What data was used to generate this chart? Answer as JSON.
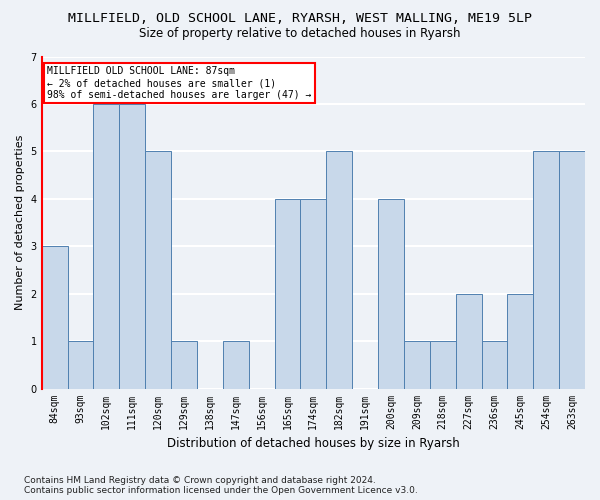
{
  "title": "MILLFIELD, OLD SCHOOL LANE, RYARSH, WEST MALLING, ME19 5LP",
  "subtitle": "Size of property relative to detached houses in Ryarsh",
  "xlabel": "Distribution of detached houses by size in Ryarsh",
  "ylabel": "Number of detached properties",
  "categories": [
    "84sqm",
    "93sqm",
    "102sqm",
    "111sqm",
    "120sqm",
    "129sqm",
    "138sqm",
    "147sqm",
    "156sqm",
    "165sqm",
    "174sqm",
    "182sqm",
    "191sqm",
    "200sqm",
    "209sqm",
    "218sqm",
    "227sqm",
    "236sqm",
    "245sqm",
    "254sqm",
    "263sqm"
  ],
  "values": [
    3,
    1,
    6,
    6,
    5,
    1,
    0,
    1,
    0,
    4,
    4,
    5,
    0,
    4,
    1,
    1,
    2,
    1,
    2,
    5,
    5
  ],
  "bar_color": "#c8d8ea",
  "bar_edge_color": "#5080b0",
  "annotation_text": "MILLFIELD OLD SCHOOL LANE: 87sqm\n← 2% of detached houses are smaller (1)\n98% of semi-detached houses are larger (47) →",
  "annotation_box_color": "white",
  "annotation_box_edge_color": "red",
  "ylim": [
    0,
    7
  ],
  "yticks": [
    0,
    1,
    2,
    3,
    4,
    5,
    6,
    7
  ],
  "footer": "Contains HM Land Registry data © Crown copyright and database right 2024.\nContains public sector information licensed under the Open Government Licence v3.0.",
  "background_color": "#eef2f7",
  "grid_color": "white",
  "title_fontsize": 9.5,
  "subtitle_fontsize": 8.5,
  "ylabel_fontsize": 8,
  "xlabel_fontsize": 8.5,
  "tick_fontsize": 7,
  "footer_fontsize": 6.5,
  "annotation_fontsize": 7
}
